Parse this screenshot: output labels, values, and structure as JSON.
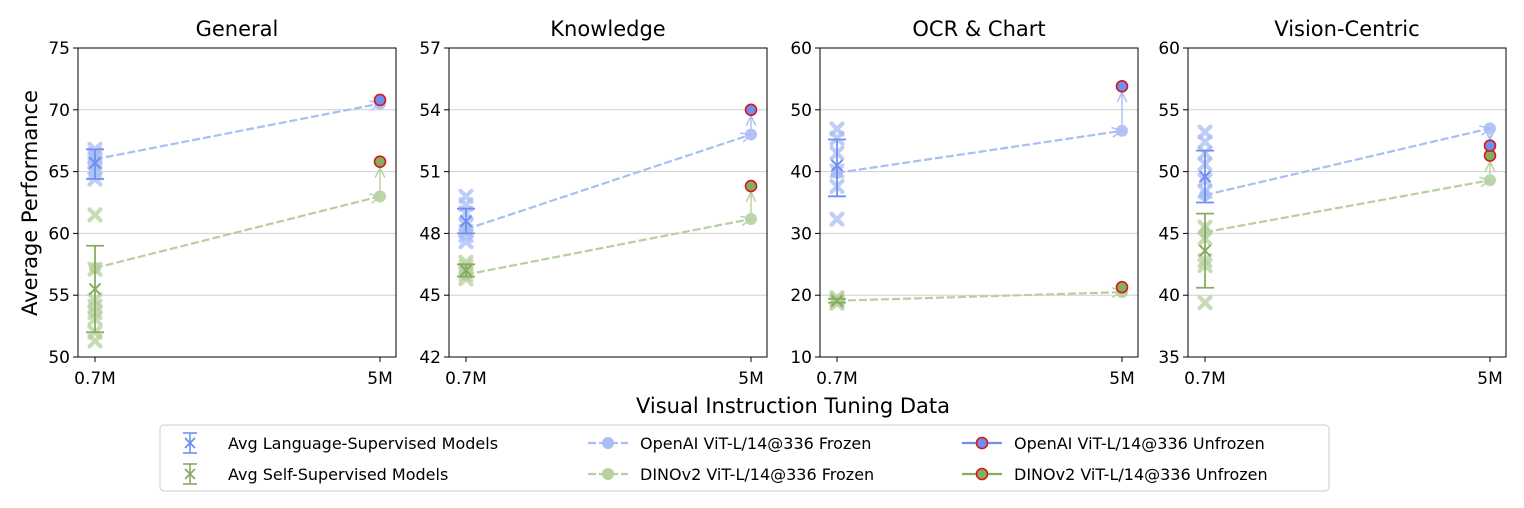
{
  "figure": {
    "ylabel": "Average Performance",
    "xlabel": "Visual Instruction Tuning Data"
  },
  "colors": {
    "lang": "#6e8ff0",
    "lang_light": "#aabdf5",
    "self": "#86ad60",
    "self_light": "#b7d0a0",
    "unfrozen_edge": "#d11a1a",
    "grid": "#d0d0d0"
  },
  "legend": {
    "items": [
      {
        "label": "Avg Language-Supervised Models",
        "kind": "avg-lang"
      },
      {
        "label": "Avg Self-Supervised Models",
        "kind": "avg-self"
      },
      {
        "label": "OpenAI ViT-L/14@336 Frozen",
        "kind": "frozen-lang"
      },
      {
        "label": "DINOv2 ViT-L/14@336 Frozen",
        "kind": "frozen-self"
      },
      {
        "label": "OpenAI ViT-L/14@336 Unfrozen",
        "kind": "unfrozen-lang"
      },
      {
        "label": "DINOv2 ViT-L/14@336 Unfrozen",
        "kind": "unfrozen-self"
      }
    ]
  },
  "chart_data": [
    {
      "type": "scatter",
      "title": "General",
      "x": [
        "0.7M",
        "5M"
      ],
      "ylim": [
        50,
        75
      ],
      "yticks": [
        50,
        55,
        60,
        65,
        70,
        75
      ],
      "grid": "horizontal",
      "lang_models": [
        64.4,
        64.9,
        65.3,
        65.7,
        66.1,
        66.4,
        66.8
      ],
      "self_models": [
        51.3,
        52.0,
        53.1,
        53.6,
        54.1,
        54.6,
        57.1,
        61.5
      ],
      "avg_lang": {
        "mean": 65.7,
        "lo": 64.4,
        "hi": 66.8
      },
      "avg_self": {
        "mean": 55.5,
        "lo": 52.0,
        "hi": 59.0
      },
      "openai_frozen": [
        66.0,
        70.5
      ],
      "dinov2_frozen": [
        57.2,
        63.0
      ],
      "openai_unfrozen_5M": 70.8,
      "dinov2_unfrozen_5M": 65.8
    },
    {
      "type": "scatter",
      "title": "Knowledge",
      "x": [
        "0.7M",
        "5M"
      ],
      "ylim": [
        42,
        57
      ],
      "yticks": [
        42,
        45,
        48,
        51,
        54,
        57
      ],
      "grid": "horizontal",
      "lang_models": [
        47.6,
        47.9,
        48.1,
        48.4,
        49.0,
        49.4,
        49.8
      ],
      "self_models": [
        45.8,
        46.0,
        46.2,
        46.4,
        46.6
      ],
      "avg_lang": {
        "mean": 48.6,
        "lo": 48.0,
        "hi": 49.2
      },
      "avg_self": {
        "mean": 46.2,
        "lo": 45.9,
        "hi": 46.5
      },
      "openai_frozen": [
        48.2,
        52.8
      ],
      "dinov2_frozen": [
        46.0,
        48.7
      ],
      "openai_unfrozen_5M": 54.0,
      "dinov2_unfrozen_5M": 50.3
    },
    {
      "type": "scatter",
      "title": "OCR & Chart",
      "x": [
        "0.7M",
        "5M"
      ],
      "ylim": [
        10,
        60
      ],
      "yticks": [
        10,
        20,
        30,
        40,
        50,
        60
      ],
      "grid": "horizontal",
      "lang_models": [
        32.3,
        37.6,
        40.1,
        43.0,
        45.4,
        46.9
      ],
      "self_models": [
        18.7,
        19.0,
        19.3,
        19.6
      ],
      "avg_lang": {
        "mean": 41.0,
        "lo": 36.0,
        "hi": 45.2
      },
      "avg_self": {
        "mean": 19.1,
        "lo": 18.8,
        "hi": 19.4
      },
      "openai_frozen": [
        39.8,
        46.6
      ],
      "dinov2_frozen": [
        19.1,
        20.5
      ],
      "openai_unfrozen_5M": 53.8,
      "dinov2_unfrozen_5M": 21.3
    },
    {
      "type": "scatter",
      "title": "Vision-Centric",
      "x": [
        "0.7M",
        "5M"
      ],
      "ylim": [
        35,
        60
      ],
      "yticks": [
        35,
        40,
        45,
        50,
        55,
        60
      ],
      "grid": "horizontal",
      "lang_models": [
        48.4,
        49.3,
        50.6,
        51.5,
        52.4,
        53.2
      ],
      "self_models": [
        39.4,
        42.4,
        42.8,
        44.6,
        45.5
      ],
      "avg_lang": {
        "mean": 49.6,
        "lo": 47.5,
        "hi": 51.7
      },
      "avg_self": {
        "mean": 43.6,
        "lo": 40.6,
        "hi": 46.6
      },
      "openai_frozen": [
        48.1,
        53.5
      ],
      "dinov2_frozen": [
        45.1,
        49.3
      ],
      "openai_unfrozen_5M": 52.1,
      "dinov2_unfrozen_5M": 51.3
    }
  ]
}
